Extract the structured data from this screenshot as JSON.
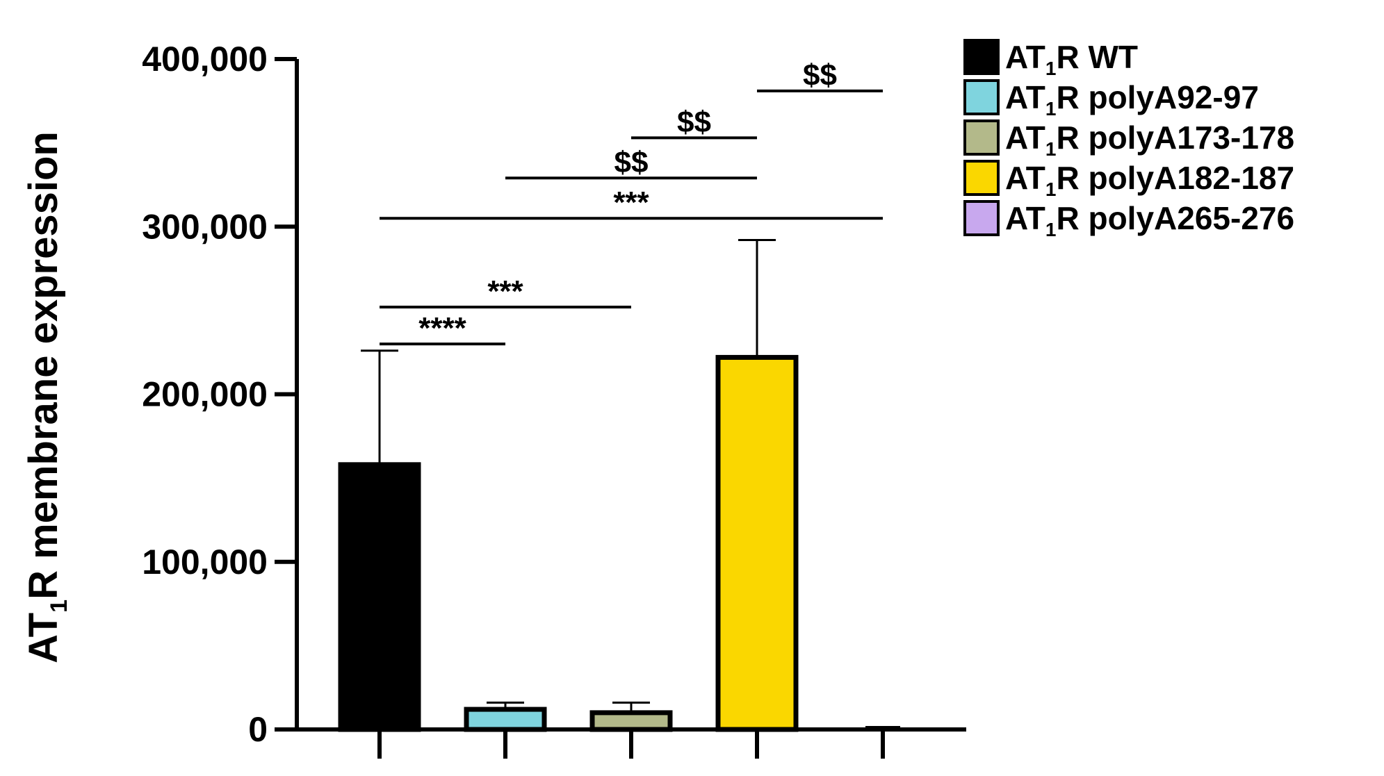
{
  "chart_data": {
    "type": "bar",
    "title": "",
    "xlabel": "",
    "ylabel": {
      "prefix": "AT",
      "subscript": "1",
      "suffix": "R membrane expression"
    },
    "ylim": [
      0,
      400000
    ],
    "yticks": [
      0,
      100000,
      200000,
      300000,
      400000
    ],
    "ytick_labels": [
      "0",
      "100,000",
      "200,000",
      "300,000",
      "400,000"
    ],
    "categories": [
      {
        "prefix": "AT",
        "subscript": "1",
        "suffix": "R WT"
      },
      {
        "prefix": "AT",
        "subscript": "1",
        "suffix": "R polyA92-97"
      },
      {
        "prefix": "AT",
        "subscript": "1",
        "suffix": "R polyA173-178"
      },
      {
        "prefix": "AT",
        "subscript": "1",
        "suffix": "R polyA182-187"
      },
      {
        "prefix": "AT",
        "subscript": "1",
        "suffix": "R polyA265-276"
      }
    ],
    "values": [
      158000,
      12000,
      10000,
      222000,
      800
    ],
    "errors": [
      68000,
      4000,
      6000,
      70000,
      500
    ],
    "colors": [
      "#000000",
      "#7fd4de",
      "#b3b98a",
      "#fad700",
      "#c8a8ee"
    ],
    "significance": [
      {
        "from": 0,
        "to": 1,
        "label": "****",
        "y": 230000
      },
      {
        "from": 0,
        "to": 2,
        "label": "***",
        "y": 252000
      },
      {
        "from": 0,
        "to": 4,
        "label": "***",
        "y": 305000
      },
      {
        "from": 1,
        "to": 3,
        "label": "$$",
        "y": 329000
      },
      {
        "from": 2,
        "to": 3,
        "label": "$$",
        "y": 353000
      },
      {
        "from": 3,
        "to": 4,
        "label": "$$",
        "y": 381000
      }
    ],
    "legend": {
      "position": "top-right"
    },
    "grid": false
  }
}
